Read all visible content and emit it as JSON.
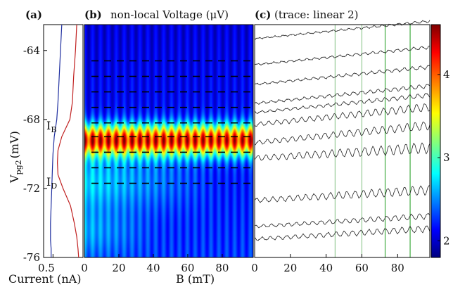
{
  "chart_data": [
    {
      "panel": "(a)",
      "type": "line",
      "ylabel": "V",
      "ylabel_sub": "pg2",
      "ylabel_unit": "(mV)",
      "xlabel": "Current (nA)",
      "xticks": [
        "0.5"
      ],
      "yticks": [
        -64,
        -68,
        -72,
        -76
      ],
      "ylim": [
        -76,
        -62.5
      ],
      "series": [
        {
          "name": "I",
          "name_sub": "B",
          "color": "#c02020",
          "x": [
            0.88,
            0.86,
            0.83,
            0.81,
            0.77,
            0.64,
            0.58,
            0.57,
            0.58,
            0.66,
            0.78,
            0.84,
            0.88,
            0.9,
            0.91
          ],
          "y": [
            -62.5,
            -64,
            -65.5,
            -67,
            -68,
            -69,
            -69.8,
            -70.5,
            -71.2,
            -72,
            -73,
            -74,
            -74.8,
            -75.5,
            -76
          ]
        },
        {
          "name": "I",
          "name_sub": "D",
          "color": "#2030a0",
          "x": [
            0.64,
            0.62,
            0.6,
            0.58,
            0.56,
            0.52,
            0.5,
            0.49,
            0.48,
            0.47,
            0.46,
            0.46,
            0.47,
            0.47
          ],
          "y": [
            -62.5,
            -64,
            -65.5,
            -67,
            -68,
            -69,
            -70,
            -71,
            -72,
            -73,
            -74,
            -75,
            -75.5,
            -76
          ]
        }
      ]
    },
    {
      "panel": "(b)",
      "type": "heatmap",
      "title": "non-local Voltage (μV)",
      "xlabel": "B (mT)",
      "xticks": [
        0,
        20,
        40,
        60,
        80
      ],
      "xlim": [
        0,
        98
      ],
      "ylim": [
        -76,
        -62.5
      ],
      "colorbar": {
        "ticks": [
          2,
          3,
          4
        ],
        "range": [
          1.8,
          4.6
        ]
      },
      "dashed_cuts_mV": [
        -64.6,
        -65.5,
        -66.4,
        -67.3,
        -68.2,
        -69.0,
        -69.9,
        -70.8,
        -71.7
      ]
    },
    {
      "panel": "(c)",
      "type": "line",
      "title": "(trace: linear 2)",
      "xlabel": "",
      "xticks": [
        0,
        20,
        40,
        60,
        80
      ],
      "xlim": [
        0,
        98
      ],
      "traces_count_hint": 11,
      "vertical_markers": [
        {
          "x": 45,
          "color": "#7fbf7f"
        },
        {
          "x": 60,
          "color": "#7fbf7f"
        },
        {
          "x": 73,
          "color": "#1a9a1a"
        },
        {
          "x": 87,
          "color": "#1a9a1a"
        }
      ]
    }
  ]
}
